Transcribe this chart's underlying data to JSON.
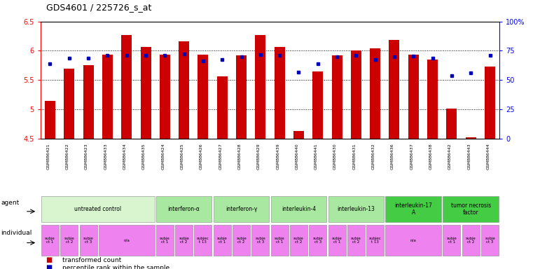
{
  "title": "GDS4601 / 225726_s_at",
  "samples": [
    "GSM886421",
    "GSM886422",
    "GSM886423",
    "GSM886433",
    "GSM886434",
    "GSM886435",
    "GSM886424",
    "GSM886425",
    "GSM886426",
    "GSM886427",
    "GSM886428",
    "GSM886429",
    "GSM886439",
    "GSM886440",
    "GSM886441",
    "GSM886430",
    "GSM886431",
    "GSM886432",
    "GSM886436",
    "GSM886437",
    "GSM886438",
    "GSM886442",
    "GSM886443",
    "GSM886444"
  ],
  "bar_values": [
    5.14,
    5.7,
    5.75,
    5.93,
    6.27,
    6.06,
    5.93,
    6.16,
    5.93,
    5.56,
    5.92,
    6.27,
    6.07,
    4.63,
    5.65,
    5.92,
    6.0,
    6.04,
    6.19,
    5.93,
    5.85,
    5.01,
    4.52,
    5.73
  ],
  "dot_values": [
    5.78,
    5.88,
    5.88,
    5.92,
    5.92,
    5.92,
    5.92,
    5.95,
    5.83,
    5.85,
    5.9,
    5.93,
    5.92,
    5.64,
    5.78,
    5.9,
    5.92,
    5.85,
    5.9,
    5.91,
    5.88,
    5.58,
    5.62,
    5.92
  ],
  "ylim_left": [
    4.5,
    6.5
  ],
  "ylim_right": [
    0,
    100
  ],
  "yticks_left": [
    4.5,
    5.0,
    5.5,
    6.0,
    6.5
  ],
  "ytick_labels_left": [
    "4.5",
    "5",
    "5.5",
    "6",
    "6.5"
  ],
  "yticks_right": [
    0,
    25,
    50,
    75,
    100
  ],
  "ytick_labels_right": [
    "0",
    "25",
    "50",
    "75",
    "100%"
  ],
  "bar_color": "#cc0000",
  "dot_color": "#0000bb",
  "grid_color": "#000000",
  "xtick_bg_color": "#d0d0d0",
  "agent_groups": [
    {
      "label": "untreated control",
      "start": 0,
      "end": 5,
      "color": "#d8f5d0"
    },
    {
      "label": "interferon-α",
      "start": 6,
      "end": 8,
      "color": "#a8e8a0"
    },
    {
      "label": "interferon-γ",
      "start": 9,
      "end": 11,
      "color": "#a8e8a0"
    },
    {
      "label": "interleukin-4",
      "start": 12,
      "end": 14,
      "color": "#a8e8a0"
    },
    {
      "label": "interleukin-13",
      "start": 15,
      "end": 17,
      "color": "#a8e8a0"
    },
    {
      "label": "interleukin-17\nA",
      "start": 18,
      "end": 20,
      "color": "#44cc44"
    },
    {
      "label": "tumor necrosis\nfactor",
      "start": 21,
      "end": 23,
      "color": "#44cc44"
    }
  ],
  "individual_groups": [
    {
      "label": "subje\nct 1",
      "start": 0,
      "end": 0,
      "color": "#ee82ee"
    },
    {
      "label": "subje\nct 2",
      "start": 1,
      "end": 1,
      "color": "#ee82ee"
    },
    {
      "label": "subje\nct 3",
      "start": 2,
      "end": 2,
      "color": "#ee82ee"
    },
    {
      "label": "n/a",
      "start": 3,
      "end": 5,
      "color": "#ee82ee"
    },
    {
      "label": "subje\nct 1",
      "start": 6,
      "end": 6,
      "color": "#ee82ee"
    },
    {
      "label": "subje\nct 2",
      "start": 7,
      "end": 7,
      "color": "#ee82ee"
    },
    {
      "label": "subjec\nt 13",
      "start": 8,
      "end": 8,
      "color": "#ee82ee"
    },
    {
      "label": "subje\nct 1",
      "start": 9,
      "end": 9,
      "color": "#ee82ee"
    },
    {
      "label": "subje\nct 2",
      "start": 10,
      "end": 10,
      "color": "#ee82ee"
    },
    {
      "label": "subje\nct 3",
      "start": 11,
      "end": 11,
      "color": "#ee82ee"
    },
    {
      "label": "subje\nct 1",
      "start": 12,
      "end": 12,
      "color": "#ee82ee"
    },
    {
      "label": "subje\nct 2",
      "start": 13,
      "end": 13,
      "color": "#ee82ee"
    },
    {
      "label": "subje\nct 3",
      "start": 14,
      "end": 14,
      "color": "#ee82ee"
    },
    {
      "label": "subje\nct 1",
      "start": 15,
      "end": 15,
      "color": "#ee82ee"
    },
    {
      "label": "subje\nct 2",
      "start": 16,
      "end": 16,
      "color": "#ee82ee"
    },
    {
      "label": "subjec\nt 13",
      "start": 17,
      "end": 17,
      "color": "#ee82ee"
    },
    {
      "label": "n/a",
      "start": 18,
      "end": 20,
      "color": "#ee82ee"
    },
    {
      "label": "subje\nct 1",
      "start": 21,
      "end": 21,
      "color": "#ee82ee"
    },
    {
      "label": "subje\nct 2",
      "start": 22,
      "end": 22,
      "color": "#ee82ee"
    },
    {
      "label": "subje\nct 3",
      "start": 23,
      "end": 23,
      "color": "#ee82ee"
    }
  ],
  "legend_items": [
    {
      "color": "#cc0000",
      "label": "transformed count"
    },
    {
      "color": "#0000bb",
      "label": "percentile rank within the sample"
    }
  ],
  "row_labels": [
    "agent",
    "individual"
  ]
}
